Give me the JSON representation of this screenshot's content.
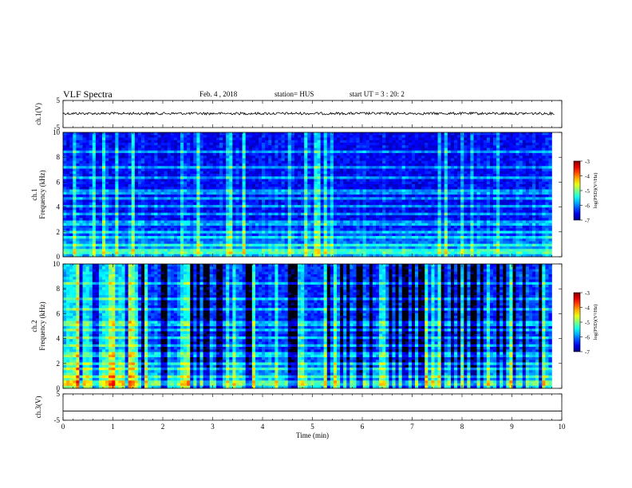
{
  "header": {
    "title": "VLF Spectra",
    "date": "Feb. 4 , 2018",
    "station": "station= HUS",
    "start_ut": "start  UT =   3 : 20: 2"
  },
  "chart_data": [
    {
      "type": "line",
      "ylabel": "ch.1(V)",
      "ylim": [
        -5,
        5
      ],
      "yticks": [
        5,
        -5
      ],
      "xlim": [
        0,
        10
      ],
      "baseline": 0.2
    },
    {
      "type": "heatmap",
      "ylabel": "ch.1\nFrequency (kHz)",
      "xlim": [
        0,
        10
      ],
      "data_xmax": 9.8,
      "ylim": [
        0,
        10
      ],
      "yticks": [
        0,
        2,
        4,
        6,
        8,
        10
      ],
      "colorbar": {
        "label": "log(PSD)(V²/Hz)",
        "range": [
          -7,
          -3
        ],
        "ticks": [
          -3,
          -4,
          -5,
          -6,
          -7
        ]
      }
    },
    {
      "type": "heatmap",
      "ylabel": "ch.2\nFrequency (kHz)",
      "xlim": [
        0,
        10
      ],
      "data_xmax": 9.8,
      "ylim": [
        0,
        10
      ],
      "yticks": [
        0,
        2,
        4,
        6,
        8,
        10
      ],
      "colorbar": {
        "label": "log(PSD)(V²/Hz)",
        "range": [
          -7,
          -3
        ],
        "ticks": [
          -3,
          -4,
          -5,
          -6,
          -7
        ]
      }
    },
    {
      "type": "line",
      "ylabel": "ch.3(V)",
      "ylim": [
        -5,
        5
      ],
      "yticks": [
        5,
        -5
      ],
      "xlim": [
        0,
        10
      ],
      "baseline": -1.5,
      "xlabel": "Time (min)",
      "xticks": [
        0,
        1,
        2,
        3,
        4,
        5,
        6,
        7,
        8,
        9,
        10
      ]
    }
  ]
}
